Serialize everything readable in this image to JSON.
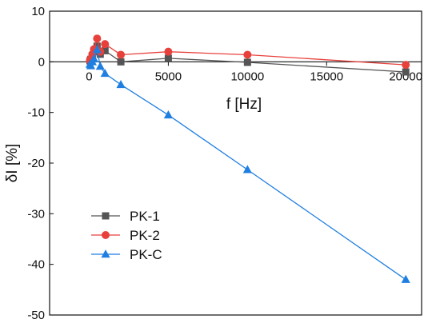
{
  "chart_data": {
    "type": "line",
    "title": "",
    "xlabel": "f [Hz]",
    "ylabel": "δI [%]",
    "xlim": [
      -2500,
      21000
    ],
    "ylim": [
      -50,
      10
    ],
    "x_ticks": [
      0,
      5000,
      10000,
      15000,
      20000
    ],
    "y_ticks": [
      10,
      0,
      -10,
      -20,
      -30,
      -40,
      -50
    ],
    "grid": false,
    "legend_position": "bottom-left",
    "series": [
      {
        "name": "PK-1",
        "color": "#555555",
        "marker": "square",
        "x": [
          50,
          100,
          200,
          300,
          500,
          700,
          1000,
          2000,
          5000,
          10000,
          20000
        ],
        "y": [
          0.2,
          0.5,
          1.2,
          2.0,
          3.1,
          1.5,
          2.2,
          0.0,
          0.7,
          -0.1,
          -2.0
        ]
      },
      {
        "name": "PK-2",
        "color": "#e8413c",
        "marker": "circle",
        "x": [
          50,
          100,
          200,
          300,
          500,
          700,
          1000,
          2000,
          5000,
          10000,
          20000
        ],
        "y": [
          0.3,
          0.6,
          1.5,
          2.5,
          4.6,
          2.0,
          3.5,
          1.4,
          2.0,
          1.4,
          -0.6
        ]
      },
      {
        "name": "PK-C",
        "color": "#1f7fe0",
        "marker": "triangle",
        "x": [
          50,
          100,
          200,
          300,
          500,
          700,
          1000,
          2000,
          5000,
          10000,
          20000
        ],
        "y": [
          -0.5,
          -0.8,
          0.0,
          0.6,
          2.4,
          -0.9,
          -2.3,
          -4.5,
          -10.5,
          -21.3,
          -43.0
        ]
      }
    ]
  }
}
